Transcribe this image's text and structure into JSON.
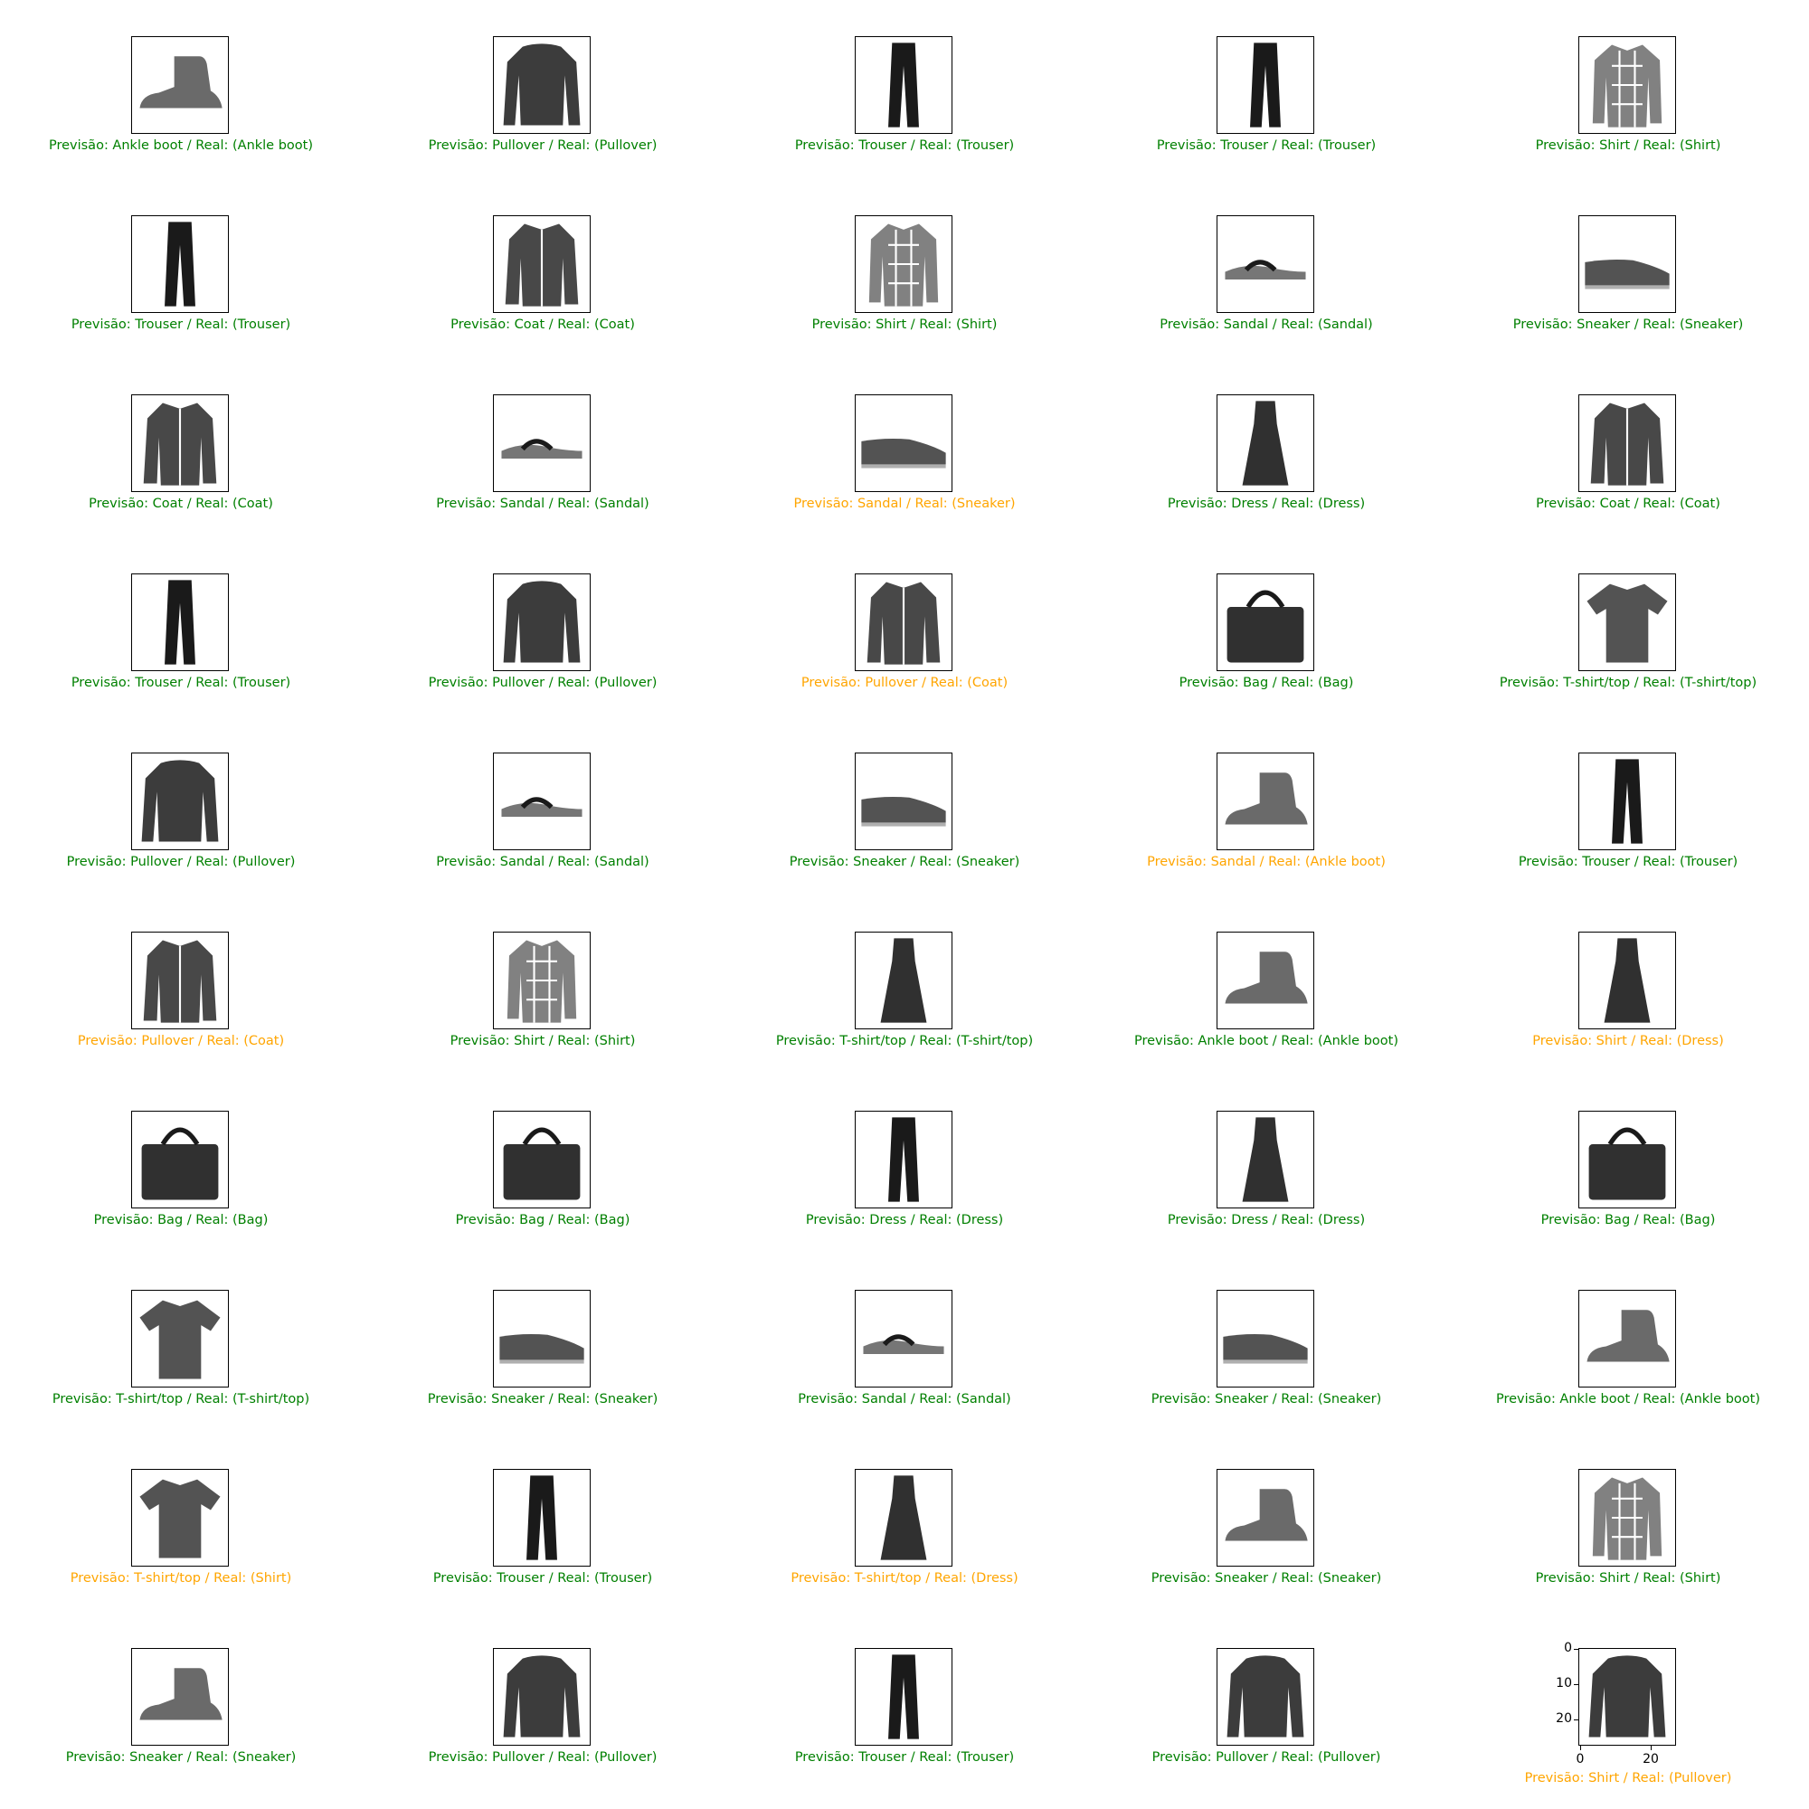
{
  "colors": {
    "correct": "#008000",
    "incorrect": "#FFA500",
    "image_ink": "#1a1a1a"
  },
  "panels": [
    {
      "pred": "Ankle boot",
      "real": "Ankle boot",
      "icon": "ankle-boot-icon",
      "text": "Previsão: Ankle boot / Real: (Ankle boot)"
    },
    {
      "pred": "Pullover",
      "real": "Pullover",
      "icon": "pullover-icon",
      "text": "Previsão: Pullover / Real: (Pullover)"
    },
    {
      "pred": "Trouser",
      "real": "Trouser",
      "icon": "trouser-icon",
      "text": "Previsão: Trouser / Real: (Trouser)"
    },
    {
      "pred": "Trouser",
      "real": "Trouser",
      "icon": "trouser-icon",
      "text": "Previsão: Trouser / Real: (Trouser)"
    },
    {
      "pred": "Shirt",
      "real": "Shirt",
      "icon": "shirt-icon",
      "text": "Previsão: Shirt / Real: (Shirt)"
    },
    {
      "pred": "Trouser",
      "real": "Trouser",
      "icon": "trouser-icon",
      "text": "Previsão: Trouser / Real: (Trouser)"
    },
    {
      "pred": "Coat",
      "real": "Coat",
      "icon": "coat-icon",
      "text": "Previsão: Coat / Real: (Coat)"
    },
    {
      "pred": "Shirt",
      "real": "Shirt",
      "icon": "shirt-icon",
      "text": "Previsão: Shirt / Real: (Shirt)"
    },
    {
      "pred": "Sandal",
      "real": "Sandal",
      "icon": "sandal-icon",
      "text": "Previsão: Sandal / Real: (Sandal)"
    },
    {
      "pred": "Sneaker",
      "real": "Sneaker",
      "icon": "sneaker-icon",
      "text": "Previsão: Sneaker / Real: (Sneaker)"
    },
    {
      "pred": "Coat",
      "real": "Coat",
      "icon": "coat-icon",
      "text": "Previsão: Coat / Real: (Coat)"
    },
    {
      "pred": "Sandal",
      "real": "Sandal",
      "icon": "sandal-icon",
      "text": "Previsão: Sandal / Real: (Sandal)"
    },
    {
      "pred": "Sandal",
      "real": "Sneaker",
      "icon": "sneaker-icon",
      "text": "Previsão: Sandal / Real: (Sneaker)"
    },
    {
      "pred": "Dress",
      "real": "Dress",
      "icon": "dress-icon",
      "text": "Previsão: Dress / Real: (Dress)"
    },
    {
      "pred": "Coat",
      "real": "Coat",
      "icon": "coat-icon",
      "text": "Previsão: Coat / Real: (Coat)"
    },
    {
      "pred": "Trouser",
      "real": "Trouser",
      "icon": "trouser-icon",
      "text": "Previsão: Trouser / Real: (Trouser)"
    },
    {
      "pred": "Pullover",
      "real": "Pullover",
      "icon": "pullover-icon",
      "text": "Previsão: Pullover / Real: (Pullover)"
    },
    {
      "pred": "Pullover",
      "real": "Coat",
      "icon": "coat-icon",
      "text": "Previsão: Pullover / Real: (Coat)"
    },
    {
      "pred": "Bag",
      "real": "Bag",
      "icon": "bag-icon",
      "text": "Previsão: Bag / Real: (Bag)"
    },
    {
      "pred": "T-shirt/top",
      "real": "T-shirt/top",
      "icon": "tshirt-icon",
      "text": "Previsão: T-shirt/top / Real: (T-shirt/top)"
    },
    {
      "pred": "Pullover",
      "real": "Pullover",
      "icon": "pullover-icon",
      "text": "Previsão: Pullover / Real: (Pullover)"
    },
    {
      "pred": "Sandal",
      "real": "Sandal",
      "icon": "sandal-icon",
      "text": "Previsão: Sandal / Real: (Sandal)"
    },
    {
      "pred": "Sneaker",
      "real": "Sneaker",
      "icon": "sneaker-icon",
      "text": "Previsão: Sneaker / Real: (Sneaker)"
    },
    {
      "pred": "Sandal",
      "real": "Ankle boot",
      "icon": "ankle-boot-icon",
      "text": "Previsão: Sandal / Real: (Ankle boot)"
    },
    {
      "pred": "Trouser",
      "real": "Trouser",
      "icon": "trouser-icon",
      "text": "Previsão: Trouser / Real: (Trouser)"
    },
    {
      "pred": "Pullover",
      "real": "Coat",
      "icon": "coat-icon",
      "text": "Previsão: Pullover / Real: (Coat)"
    },
    {
      "pred": "Shirt",
      "real": "Shirt",
      "icon": "shirt-icon",
      "text": "Previsão: Shirt / Real: (Shirt)"
    },
    {
      "pred": "T-shirt/top",
      "real": "T-shirt/top",
      "icon": "dress-icon",
      "text": "Previsão: T-shirt/top / Real: (T-shirt/top)"
    },
    {
      "pred": "Ankle boot",
      "real": "Ankle boot",
      "icon": "ankle-boot-icon",
      "text": "Previsão: Ankle boot / Real: (Ankle boot)"
    },
    {
      "pred": "Shirt",
      "real": "Dress",
      "icon": "dress-icon",
      "text": "Previsão: Shirt / Real: (Dress)"
    },
    {
      "pred": "Bag",
      "real": "Bag",
      "icon": "bag-icon",
      "text": "Previsão: Bag / Real: (Bag)"
    },
    {
      "pred": "Bag",
      "real": "Bag",
      "icon": "bag-icon",
      "text": "Previsão: Bag / Real: (Bag)"
    },
    {
      "pred": "Dress",
      "real": "Dress",
      "icon": "trouser-icon",
      "text": "Previsão: Dress / Real: (Dress)"
    },
    {
      "pred": "Dress",
      "real": "Dress",
      "icon": "dress-icon",
      "text": "Previsão: Dress / Real: (Dress)"
    },
    {
      "pred": "Bag",
      "real": "Bag",
      "icon": "bag-icon",
      "text": "Previsão: Bag / Real: (Bag)"
    },
    {
      "pred": "T-shirt/top",
      "real": "T-shirt/top",
      "icon": "tshirt-icon",
      "text": "Previsão: T-shirt/top / Real: (T-shirt/top)"
    },
    {
      "pred": "Sneaker",
      "real": "Sneaker",
      "icon": "sneaker-icon",
      "text": "Previsão: Sneaker / Real: (Sneaker)"
    },
    {
      "pred": "Sandal",
      "real": "Sandal",
      "icon": "sandal-icon",
      "text": "Previsão: Sandal / Real: (Sandal)"
    },
    {
      "pred": "Sneaker",
      "real": "Sneaker",
      "icon": "sneaker-icon",
      "text": "Previsão: Sneaker / Real: (Sneaker)"
    },
    {
      "pred": "Ankle boot",
      "real": "Ankle boot",
      "icon": "ankle-boot-icon",
      "text": "Previsão: Ankle boot / Real: (Ankle boot)"
    },
    {
      "pred": "T-shirt/top",
      "real": "Shirt",
      "icon": "tshirt-icon",
      "text": "Previsão: T-shirt/top / Real: (Shirt)"
    },
    {
      "pred": "Trouser",
      "real": "Trouser",
      "icon": "trouser-icon",
      "text": "Previsão: Trouser / Real: (Trouser)"
    },
    {
      "pred": "T-shirt/top",
      "real": "Dress",
      "icon": "dress-icon",
      "text": "Previsão: T-shirt/top / Real: (Dress)"
    },
    {
      "pred": "Sneaker",
      "real": "Sneaker",
      "icon": "ankle-boot-icon",
      "text": "Previsão: Sneaker / Real: (Sneaker)"
    },
    {
      "pred": "Shirt",
      "real": "Shirt",
      "icon": "shirt-icon",
      "text": "Previsão: Shirt / Real: (Shirt)"
    },
    {
      "pred": "Sneaker",
      "real": "Sneaker",
      "icon": "ankle-boot-icon",
      "text": "Previsão: Sneaker / Real: (Sneaker)"
    },
    {
      "pred": "Pullover",
      "real": "Pullover",
      "icon": "pullover-icon",
      "text": "Previsão: Pullover / Real: (Pullover)"
    },
    {
      "pred": "Trouser",
      "real": "Trouser",
      "icon": "trouser-icon",
      "text": "Previsão: Trouser / Real: (Trouser)"
    },
    {
      "pred": "Pullover",
      "real": "Pullover",
      "icon": "pullover-icon",
      "text": "Previsão: Pullover / Real: (Pullover)"
    },
    {
      "pred": "Shirt",
      "real": "Pullover",
      "icon": "pullover-icon",
      "text": "Previsão: Shirt / Real: (Pullover)"
    }
  ],
  "last_axes": {
    "yticks": [
      "0",
      "10",
      "20"
    ],
    "xticks": [
      "0",
      "20"
    ]
  }
}
